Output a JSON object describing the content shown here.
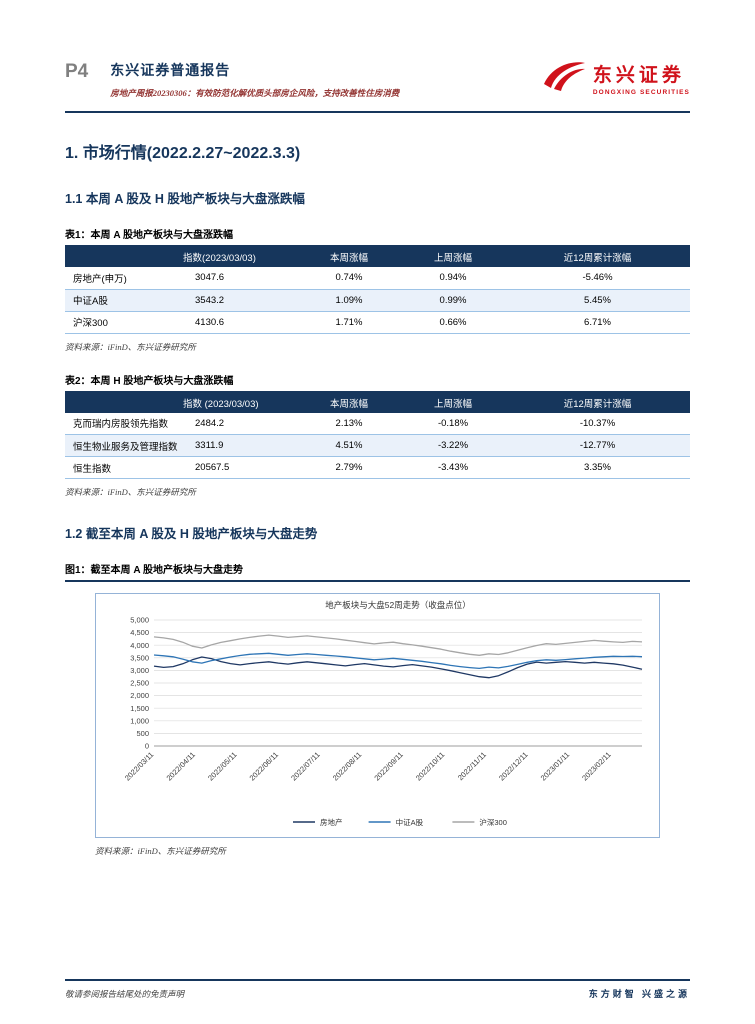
{
  "header": {
    "page_number": "P4",
    "report_type": "东兴证券普通报告",
    "subtitle": "房地产周报20230306：有效防范化解优质头部房企风险，支持改善性住房消费",
    "logo_cn": "东兴证券",
    "logo_en": "DONGXING SECURITIES",
    "brand_color": "#D0121B",
    "accent_color": "#16365C"
  },
  "sections": {
    "market_title": "1. 市场行情(2022.2.27~2022.3.3)",
    "s11_title": "1.1 本周 A 股及 H 股地产板块与大盘涨跌幅",
    "s12_title": "1.2 截至本周 A 股及 H 股地产板块与大盘走势"
  },
  "table1": {
    "caption": "表1：本周 A 股地产板块与大盘涨跌幅",
    "headers": [
      "指数(2023/03/03)",
      "本周涨幅",
      "上周涨幅",
      "近12周累计涨幅"
    ],
    "rows": [
      [
        "房地产(申万)",
        "3047.6",
        "0.74%",
        "0.94%",
        "-5.46%"
      ],
      [
        "中证A股",
        "3543.2",
        "1.09%",
        "0.99%",
        "5.45%"
      ],
      [
        "沪深300",
        "4130.6",
        "1.71%",
        "0.66%",
        "6.71%"
      ]
    ],
    "source": "资料来源：iFinD、东兴证券研究所"
  },
  "table2": {
    "caption": "表2：本周 H 股地产板块与大盘涨跌幅",
    "headers": [
      "指数 (2023/03/03)",
      "本周涨幅",
      "上周涨幅",
      "近12周累计涨幅"
    ],
    "rows": [
      [
        "克而瑞内房股领先指数",
        "2484.2",
        "2.13%",
        "-0.18%",
        "-10.37%"
      ],
      [
        "恒生物业服务及管理指数",
        "3311.9",
        "4.51%",
        "-3.22%",
        "-12.77%"
      ],
      [
        "恒生指数",
        "20567.5",
        "2.79%",
        "-3.43%",
        "3.35%"
      ]
    ],
    "source": "资料来源：iFinD、东兴证券研究所"
  },
  "figure1": {
    "caption": "图1：截至本周 A 股地产板块与大盘走势",
    "source": "资料来源：iFinD、东兴证券研究所"
  },
  "chart_data": {
    "type": "line",
    "title": "地产板块与大盘52周走势（收盘点位）",
    "ylabel": "",
    "xlabel": "",
    "ylim": [
      0,
      5000
    ],
    "y_tick_step": 500,
    "grid": true,
    "legend_position": "bottom",
    "x_labels": [
      "2022/03/11",
      "2022/04/11",
      "2022/05/11",
      "2022/06/11",
      "2022/07/11",
      "2022/08/11",
      "2022/09/11",
      "2022/10/11",
      "2022/11/11",
      "2022/12/11",
      "2023/01/11",
      "2023/02/11"
    ],
    "series": [
      {
        "name": "房地产",
        "color": "#1F3864",
        "values": [
          3170,
          3120,
          3150,
          3260,
          3420,
          3530,
          3470,
          3350,
          3270,
          3220,
          3270,
          3310,
          3340,
          3290,
          3250,
          3300,
          3340,
          3300,
          3260,
          3220,
          3180,
          3230,
          3270,
          3220,
          3170,
          3140,
          3190,
          3230,
          3180,
          3130,
          3060,
          2990,
          2910,
          2830,
          2750,
          2710,
          2790,
          2940,
          3110,
          3250,
          3330,
          3290,
          3320,
          3350,
          3320,
          3290,
          3320,
          3290,
          3260,
          3210,
          3130,
          3048
        ]
      },
      {
        "name": "中证A股",
        "color": "#2E75B6",
        "values": [
          3610,
          3580,
          3540,
          3450,
          3340,
          3290,
          3390,
          3460,
          3530,
          3590,
          3640,
          3660,
          3680,
          3640,
          3600,
          3630,
          3660,
          3630,
          3600,
          3570,
          3540,
          3500,
          3460,
          3420,
          3450,
          3480,
          3440,
          3400,
          3360,
          3310,
          3260,
          3200,
          3150,
          3110,
          3080,
          3130,
          3100,
          3160,
          3240,
          3320,
          3390,
          3420,
          3400,
          3430,
          3460,
          3490,
          3520,
          3540,
          3560,
          3550,
          3560,
          3543
        ]
      },
      {
        "name": "沪深300",
        "color": "#A6A6A6",
        "values": [
          4330,
          4290,
          4230,
          4120,
          3960,
          3890,
          4010,
          4110,
          4180,
          4250,
          4310,
          4360,
          4400,
          4360,
          4310,
          4340,
          4370,
          4330,
          4290,
          4250,
          4200,
          4150,
          4100,
          4050,
          4090,
          4120,
          4060,
          4010,
          3960,
          3900,
          3840,
          3760,
          3700,
          3640,
          3600,
          3660,
          3630,
          3700,
          3800,
          3900,
          3990,
          4060,
          4030,
          4070,
          4110,
          4150,
          4190,
          4160,
          4130,
          4110,
          4150,
          4131
        ]
      }
    ]
  },
  "footer": {
    "left": "敬请参阅报告结尾处的免责声明",
    "right": "东方财智 兴盛之源"
  }
}
